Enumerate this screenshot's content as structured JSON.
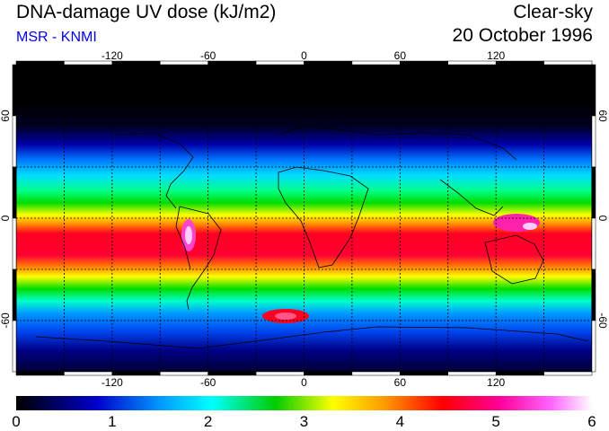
{
  "header": {
    "title": "DNA-damage UV dose (kJ/m2)",
    "source": "MSR - KNMI",
    "condition": "Clear-sky",
    "date": "20 October 1996"
  },
  "map": {
    "projection": "equirectangular",
    "lon_ticks": [
      "-120",
      "-60",
      "0",
      "60",
      "120"
    ],
    "lat_ticks": [
      "60",
      "0",
      "-60"
    ],
    "lon_tick_values": [
      -120,
      -60,
      0,
      60,
      120
    ],
    "lat_tick_values": [
      60,
      0,
      -60
    ],
    "gridlines": "dotted every 30 degrees"
  },
  "colorbar": {
    "min": 0,
    "max": 6,
    "labels": [
      "0",
      "1",
      "2",
      "3",
      "4",
      "5",
      "6"
    ],
    "stops": [
      "#000000",
      "#0000cc",
      "#0099ff",
      "#00ffff",
      "#00cc00",
      "#ffff00",
      "#ff9900",
      "#ff0000",
      "#ff0099",
      "#ff66ff",
      "#ffffff"
    ]
  },
  "colors": {
    "title": "#000000",
    "source": "#0000ee"
  }
}
